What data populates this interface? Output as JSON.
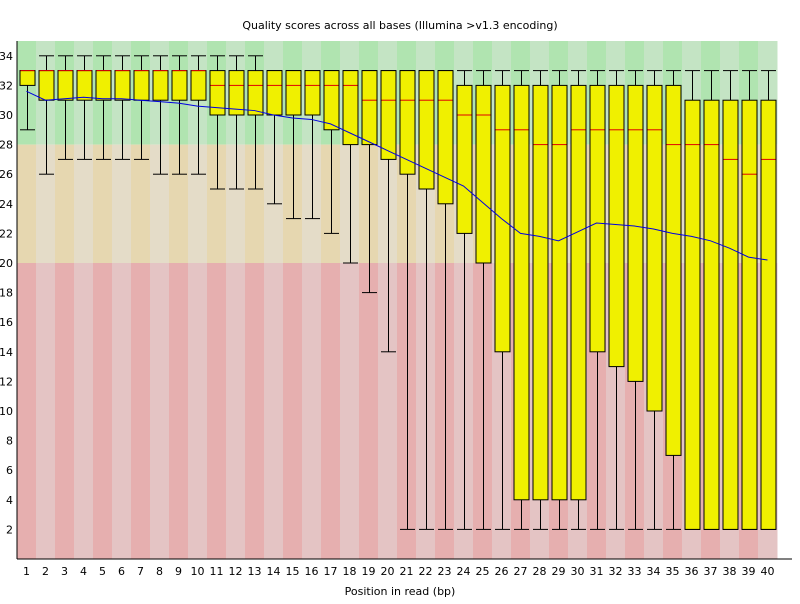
{
  "chart_data": {
    "type": "box",
    "title": "Quality scores across all bases (Illumina >v1.3 encoding)",
    "xlabel": "Position in read (bp)",
    "ylabel": "",
    "ylim": [
      0,
      35
    ],
    "yticks": [
      2,
      4,
      6,
      8,
      10,
      12,
      14,
      16,
      18,
      20,
      22,
      24,
      26,
      28,
      30,
      32,
      34
    ],
    "zones": [
      {
        "from": 28,
        "to": 35,
        "colors": [
          "#b0e4b0",
          "#c4e4c4"
        ]
      },
      {
        "from": 20,
        "to": 28,
        "colors": [
          "#e6d7b0",
          "#e4dcc8"
        ]
      },
      {
        "from": 0,
        "to": 20,
        "colors": [
          "#e6afaf",
          "#e4c4c4"
        ]
      }
    ],
    "colors": {
      "box": "#f0f000",
      "median": "#e00000",
      "mean": "#0000e0"
    },
    "positions": [
      "1",
      "2",
      "3",
      "4",
      "5",
      "6",
      "7",
      "8",
      "9",
      "10",
      "11",
      "12",
      "13",
      "14",
      "15",
      "16",
      "17",
      "18",
      "19",
      "20",
      "21",
      "22",
      "23",
      "24",
      "25",
      "26",
      "27",
      "28",
      "29",
      "30",
      "31",
      "32",
      "33",
      "34",
      "35",
      "36",
      "37",
      "38",
      "39",
      "40"
    ],
    "upper_whisker": [
      33,
      34,
      34,
      34,
      34,
      34,
      34,
      34,
      34,
      34,
      34,
      34,
      34,
      33,
      33,
      33,
      33,
      33,
      33,
      33,
      33,
      33,
      33,
      33,
      33,
      33,
      33,
      33,
      33,
      33,
      33,
      33,
      33,
      33,
      33,
      33,
      33,
      33,
      33,
      33
    ],
    "q3": [
      33,
      33,
      33,
      33,
      33,
      33,
      33,
      33,
      33,
      33,
      33,
      33,
      33,
      33,
      33,
      33,
      33,
      33,
      33,
      33,
      33,
      33,
      33,
      32,
      32,
      32,
      32,
      32,
      32,
      32,
      32,
      32,
      32,
      32,
      32,
      31,
      31,
      31,
      31,
      31
    ],
    "median": [
      33,
      33,
      33,
      33,
      33,
      33,
      33,
      33,
      33,
      33,
      32,
      32,
      32,
      32,
      32,
      32,
      32,
      32,
      31,
      31,
      31,
      31,
      31,
      30,
      30,
      29,
      29,
      28,
      28,
      29,
      29,
      29,
      29,
      29,
      28,
      28,
      28,
      27,
      26,
      27
    ],
    "q1": [
      32,
      31,
      31,
      31,
      31,
      31,
      31,
      31,
      31,
      31,
      30,
      30,
      30,
      30,
      30,
      30,
      29,
      28,
      28,
      27,
      26,
      25,
      24,
      22,
      20,
      14,
      4,
      4,
      4,
      4,
      14,
      13,
      12,
      10,
      7,
      2,
      2,
      2,
      2,
      2
    ],
    "lower_whisker": [
      29,
      26,
      27,
      27,
      27,
      27,
      27,
      26,
      26,
      26,
      25,
      25,
      25,
      24,
      23,
      23,
      22,
      20,
      18,
      14,
      2,
      2,
      2,
      2,
      2,
      2,
      2,
      2,
      2,
      2,
      2,
      2,
      2,
      2,
      2,
      2,
      2,
      2,
      2,
      2
    ],
    "mean": [
      31.6,
      31.0,
      31.1,
      31.2,
      31.1,
      31.1,
      31.0,
      30.9,
      30.8,
      30.6,
      30.5,
      30.4,
      30.3,
      30.0,
      29.8,
      29.7,
      29.4,
      28.8,
      28.2,
      27.6,
      27.0,
      26.4,
      25.8,
      25.2,
      24.1,
      23.0,
      22.0,
      21.8,
      21.5,
      22.1,
      22.7,
      22.6,
      22.5,
      22.3,
      22.0,
      21.8,
      21.5,
      21.0,
      20.4,
      20.2
    ]
  }
}
